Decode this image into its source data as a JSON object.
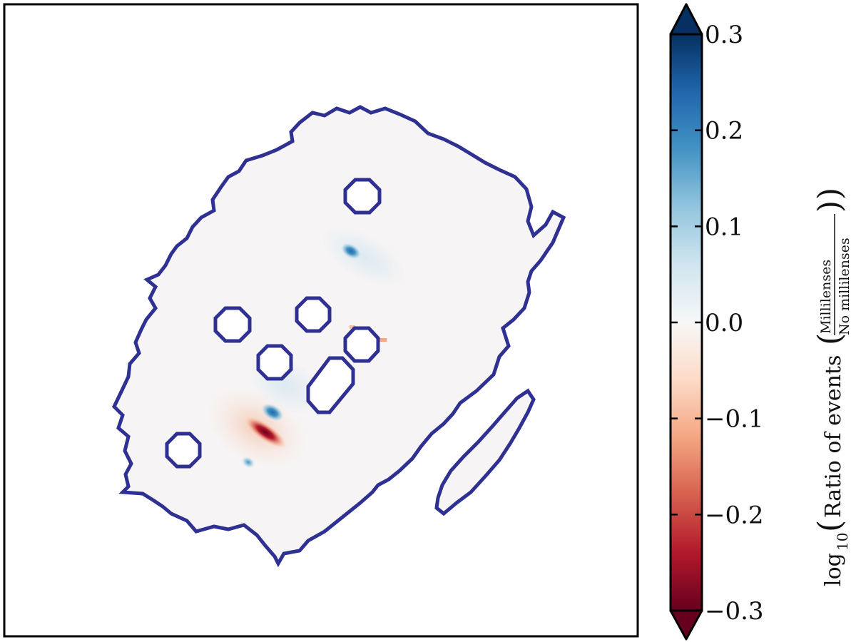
{
  "chart_data": {
    "type": "heatmap",
    "title": "",
    "xlabel": "",
    "ylabel": "",
    "colorbar": {
      "colormap": "RdBu",
      "range": [
        -0.3,
        0.3
      ],
      "extend": "both",
      "ticks": [
        {
          "value": 0.3,
          "label": "0.3"
        },
        {
          "value": 0.2,
          "label": "0.2"
        },
        {
          "value": 0.1,
          "label": "0.1"
        },
        {
          "value": 0.0,
          "label": "0.0"
        },
        {
          "value": -0.1,
          "label": "−0.1"
        },
        {
          "value": -0.2,
          "label": "−0.2"
        },
        {
          "value": -0.3,
          "label": "−0.3"
        }
      ],
      "label": {
        "prefix": "log",
        "subscript": "10",
        "main": "Ratio of events",
        "numerator": "Millilenses",
        "denominator": "No millilenses"
      }
    },
    "features": [
      {
        "kind": "negative",
        "value": -0.3,
        "description": "strongest deficit near lower-left"
      },
      {
        "kind": "positive",
        "value": 0.15,
        "description": "excess adjacent to deficit"
      },
      {
        "kind": "positive",
        "value": 0.12,
        "description": "excess near upper-center"
      },
      {
        "kind": "positive",
        "value": 0.08,
        "description": "weak excess lower-left"
      }
    ],
    "masked_regions": 7,
    "footprint_outline_color": "#2e3192",
    "background_value": 0.0
  }
}
